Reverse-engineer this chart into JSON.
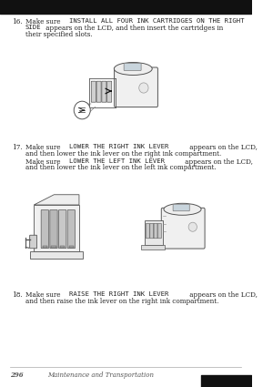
{
  "background_color": "#ffffff",
  "fig_width": 3.0,
  "fig_height": 4.25,
  "dpi": 100,
  "text_color": "#222222",
  "mono_color": "#222222",
  "footer_color": "#555555",
  "font_size_body": 5.2,
  "font_size_footer": 5.0,
  "footer_page": "296",
  "footer_text": "Maintenance and Transportation",
  "step16_num": "16.",
  "step16_lines": [
    [
      [
        "Make sure ",
        false
      ],
      [
        "INSTALL ALL FOUR INK CARTRIDGES ON THE RIGHT",
        true
      ]
    ],
    [
      [
        "SIDE",
        true
      ],
      [
        " appears on the LCD, and then insert the cartridges in",
        false
      ]
    ],
    [
      [
        "their specified slots.",
        false
      ]
    ]
  ],
  "step17_num": "17.",
  "step17_lines_a": [
    [
      [
        "Make sure ",
        false
      ],
      [
        "LOWER THE RIGHT INK LEVER",
        true
      ],
      [
        " appears on the LCD,",
        false
      ]
    ],
    [
      [
        "and then lower the ink lever on the right ink compartment.",
        false
      ]
    ]
  ],
  "step17_lines_b": [
    [
      [
        "Make sure ",
        false
      ],
      [
        "LOWER THE LEFT INK LEVER",
        true
      ],
      [
        " appears on the LCD,",
        false
      ]
    ],
    [
      [
        "and then lower the ink lever on the left ink compartment.",
        false
      ]
    ]
  ],
  "step18_num": "18.",
  "step18_lines": [
    [
      [
        "Make sure ",
        false
      ],
      [
        "RAISE THE RIGHT INK LEVER",
        true
      ],
      [
        " appears on the LCD,",
        false
      ]
    ],
    [
      [
        "and then raise the ink lever on the right ink compartment.",
        false
      ]
    ]
  ]
}
